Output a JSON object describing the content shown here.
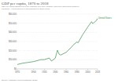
{
  "chart_data": {
    "type": "line",
    "title": "GDP per capita, 1870 to 2018",
    "subtitle": "GDP per capita adjusted for price changes over time (inflation) and price differences between countries – it is measured in international-$ in 2011 prices.",
    "source": "Source: Maddison Project Database (2020)",
    "x": [
      1870,
      1880,
      1890,
      1900,
      1910,
      1913,
      1920,
      1929,
      1933,
      1940,
      1944,
      1947,
      1950,
      1960,
      1970,
      1973,
      1980,
      1982,
      1990,
      2000,
      2007,
      2009,
      2010,
      2016,
      2018
    ],
    "series": [
      {
        "name": "United States",
        "color": "#3a8f4e",
        "values": [
          4800,
          6300,
          7100,
          8000,
          9600,
          10100,
          10200,
          11900,
          8600,
          11700,
          20400,
          16200,
          15200,
          18100,
          23900,
          26100,
          29600,
          28500,
          36900,
          45900,
          51700,
          49600,
          50000,
          53000,
          55300
        ]
      }
    ],
    "xlim": [
      1870,
      2018
    ],
    "xticks": [
      1870,
      1900,
      1920,
      1940,
      1960,
      1980,
      2000,
      2018
    ],
    "ylim": [
      0,
      60000
    ],
    "yticks": [
      {
        "value": 0,
        "label": "$0"
      },
      {
        "value": 10000,
        "label": "$10,000"
      },
      {
        "value": 20000,
        "label": "$20,000"
      },
      {
        "value": 30000,
        "label": "$30,000"
      },
      {
        "value": 40000,
        "label": "$40,000"
      },
      {
        "value": 50000,
        "label": "$50,000"
      },
      {
        "value": 60000,
        "label": "$60,000"
      }
    ],
    "grid": true
  }
}
